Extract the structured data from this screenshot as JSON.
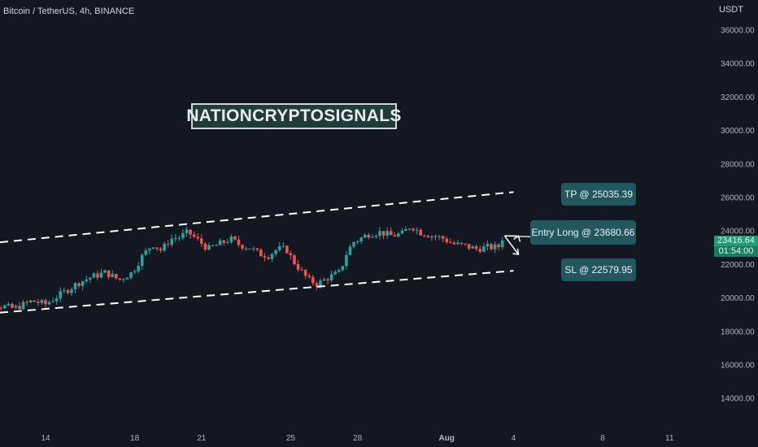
{
  "header": {
    "symbol_title": "Bitcoin / TetherUS, 4h, BINANCE",
    "currency": "USDT"
  },
  "watermark": {
    "text": "NATIONCRYPTOSIGNALS"
  },
  "annotations": {
    "tp": "TP @ 25035.39",
    "entry": "Entry Long @ 23680.66",
    "sl": "SL @ 22579.95"
  },
  "last_price": {
    "value": "23416.64",
    "countdown": "01:54:00"
  },
  "colors": {
    "background": "#131722",
    "up": "#26a69a",
    "down": "#ef5350",
    "callout": "#22575f",
    "price_tag": "#1f9c76",
    "channel_line": "#ffffff"
  },
  "chart_data": {
    "type": "candlestick",
    "title": "Bitcoin / TetherUS, 4h, BINANCE",
    "xlabel": "",
    "ylabel": "USDT",
    "ylim": [
      12500,
      37000
    ],
    "y_ticks": [
      "36000.00",
      "34000.00",
      "32000.00",
      "30000.00",
      "28000.00",
      "26000.00",
      "24000.00",
      "22000.00",
      "20000.00",
      "18000.00",
      "16000.00",
      "14000.00"
    ],
    "x_ticks": [
      {
        "label": "14",
        "day": 14
      },
      {
        "label": "18",
        "day": 18
      },
      {
        "label": "21",
        "day": 21
      },
      {
        "label": "25",
        "day": 25
      },
      {
        "label": "28",
        "day": 28
      },
      {
        "label": "Aug",
        "day": 32,
        "bold": true
      },
      {
        "label": "4",
        "day": 35
      },
      {
        "label": "8",
        "day": 39
      },
      {
        "label": "11",
        "day": 42
      }
    ],
    "grid": false,
    "candles_close_path": [
      [
        10.5,
        19950
      ],
      [
        11.3,
        19700
      ],
      [
        12.0,
        19500
      ],
      [
        12.6,
        19350
      ],
      [
        13.4,
        19800
      ],
      [
        14.0,
        19600
      ],
      [
        14.8,
        20300
      ],
      [
        15.5,
        20900
      ],
      [
        16.0,
        21200
      ],
      [
        16.7,
        21500
      ],
      [
        17.3,
        21050
      ],
      [
        17.9,
        21500
      ],
      [
        18.3,
        22400
      ],
      [
        18.8,
        23200
      ],
      [
        19.2,
        22800
      ],
      [
        19.6,
        23500
      ],
      [
        20.0,
        23600
      ],
      [
        20.4,
        23900
      ],
      [
        20.9,
        23350
      ],
      [
        21.3,
        22900
      ],
      [
        21.8,
        23200
      ],
      [
        22.3,
        23500
      ],
      [
        22.7,
        23150
      ],
      [
        23.2,
        22950
      ],
      [
        23.6,
        22600
      ],
      [
        24.0,
        22500
      ],
      [
        24.4,
        22900
      ],
      [
        24.8,
        22900
      ],
      [
        25.1,
        22200
      ],
      [
        25.4,
        21700
      ],
      [
        25.8,
        21050
      ],
      [
        26.2,
        20800
      ],
      [
        26.7,
        21200
      ],
      [
        27.2,
        21500
      ],
      [
        27.5,
        22600
      ],
      [
        27.8,
        23300
      ],
      [
        28.1,
        23500
      ],
      [
        28.5,
        23800
      ],
      [
        29.0,
        23900
      ],
      [
        29.5,
        23700
      ],
      [
        30.0,
        23800
      ],
      [
        30.4,
        24300
      ],
      [
        30.8,
        23900
      ],
      [
        31.3,
        23700
      ],
      [
        31.8,
        23550
      ],
      [
        32.3,
        23200
      ],
      [
        32.8,
        23100
      ],
      [
        33.3,
        22900
      ],
      [
        33.8,
        23000
      ],
      [
        34.3,
        23000
      ],
      [
        34.6,
        23416.64
      ]
    ],
    "last_price": 23416.64,
    "channel_upper": [
      [
        10.5,
        23300
      ],
      [
        35.0,
        26300
      ]
    ],
    "channel_lower": [
      [
        10.5,
        19100
      ],
      [
        35.0,
        21600
      ]
    ],
    "levels": {
      "take_profit": 25035.39,
      "entry_long": 23680.66,
      "stop_loss": 22579.95
    }
  }
}
